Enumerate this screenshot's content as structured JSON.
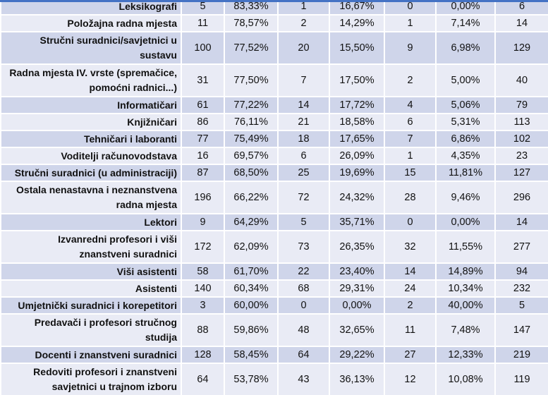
{
  "rows": [
    [
      "Leksikografi",
      "5",
      "83,33%",
      "1",
      "16,67%",
      "0",
      "0,00%",
      "6"
    ],
    [
      "Položajna radna mjesta",
      "11",
      "78,57%",
      "2",
      "14,29%",
      "1",
      "7,14%",
      "14"
    ],
    [
      "Stručni suradnici/savjetnici u sustavu",
      "100",
      "77,52%",
      "20",
      "15,50%",
      "9",
      "6,98%",
      "129"
    ],
    [
      "Radna mjesta IV. vrste (spremačice, pomoćni radnici...)",
      "31",
      "77,50%",
      "7",
      "17,50%",
      "2",
      "5,00%",
      "40"
    ],
    [
      "Informatičari",
      "61",
      "77,22%",
      "14",
      "17,72%",
      "4",
      "5,06%",
      "79"
    ],
    [
      "Knjižničari",
      "86",
      "76,11%",
      "21",
      "18,58%",
      "6",
      "5,31%",
      "113"
    ],
    [
      "Tehničari i laboranti",
      "77",
      "75,49%",
      "18",
      "17,65%",
      "7",
      "6,86%",
      "102"
    ],
    [
      "Voditelji računovodstava",
      "16",
      "69,57%",
      "6",
      "26,09%",
      "1",
      "4,35%",
      "23"
    ],
    [
      "Stručni suradnici (u administraciji)",
      "87",
      "68,50%",
      "25",
      "19,69%",
      "15",
      "11,81%",
      "127"
    ],
    [
      "Ostala nenastavna i neznanstvena radna mjesta",
      "196",
      "66,22%",
      "72",
      "24,32%",
      "28",
      "9,46%",
      "296"
    ],
    [
      "Lektori",
      "9",
      "64,29%",
      "5",
      "35,71%",
      "0",
      "0,00%",
      "14"
    ],
    [
      "Izvanredni profesori i viši znanstveni suradnici",
      "172",
      "62,09%",
      "73",
      "26,35%",
      "32",
      "11,55%",
      "277"
    ],
    [
      "Viši asistenti",
      "58",
      "61,70%",
      "22",
      "23,40%",
      "14",
      "14,89%",
      "94"
    ],
    [
      "Asistenti",
      "140",
      "60,34%",
      "68",
      "29,31%",
      "24",
      "10,34%",
      "232"
    ],
    [
      "Umjetnički suradnici i korepetitori",
      "3",
      "60,00%",
      "0",
      "0,00%",
      "2",
      "40,00%",
      "5"
    ],
    [
      "Predavači i profesori stručnog studija",
      "88",
      "59,86%",
      "48",
      "32,65%",
      "11",
      "7,48%",
      "147"
    ],
    [
      "Docenti i znanstveni suradnici",
      "128",
      "58,45%",
      "64",
      "29,22%",
      "27",
      "12,33%",
      "219"
    ],
    [
      "Redoviti profesori i znanstveni savjetnici u trajnom izboru",
      "64",
      "53,78%",
      "43",
      "36,13%",
      "12",
      "10,08%",
      "119"
    ]
  ]
}
